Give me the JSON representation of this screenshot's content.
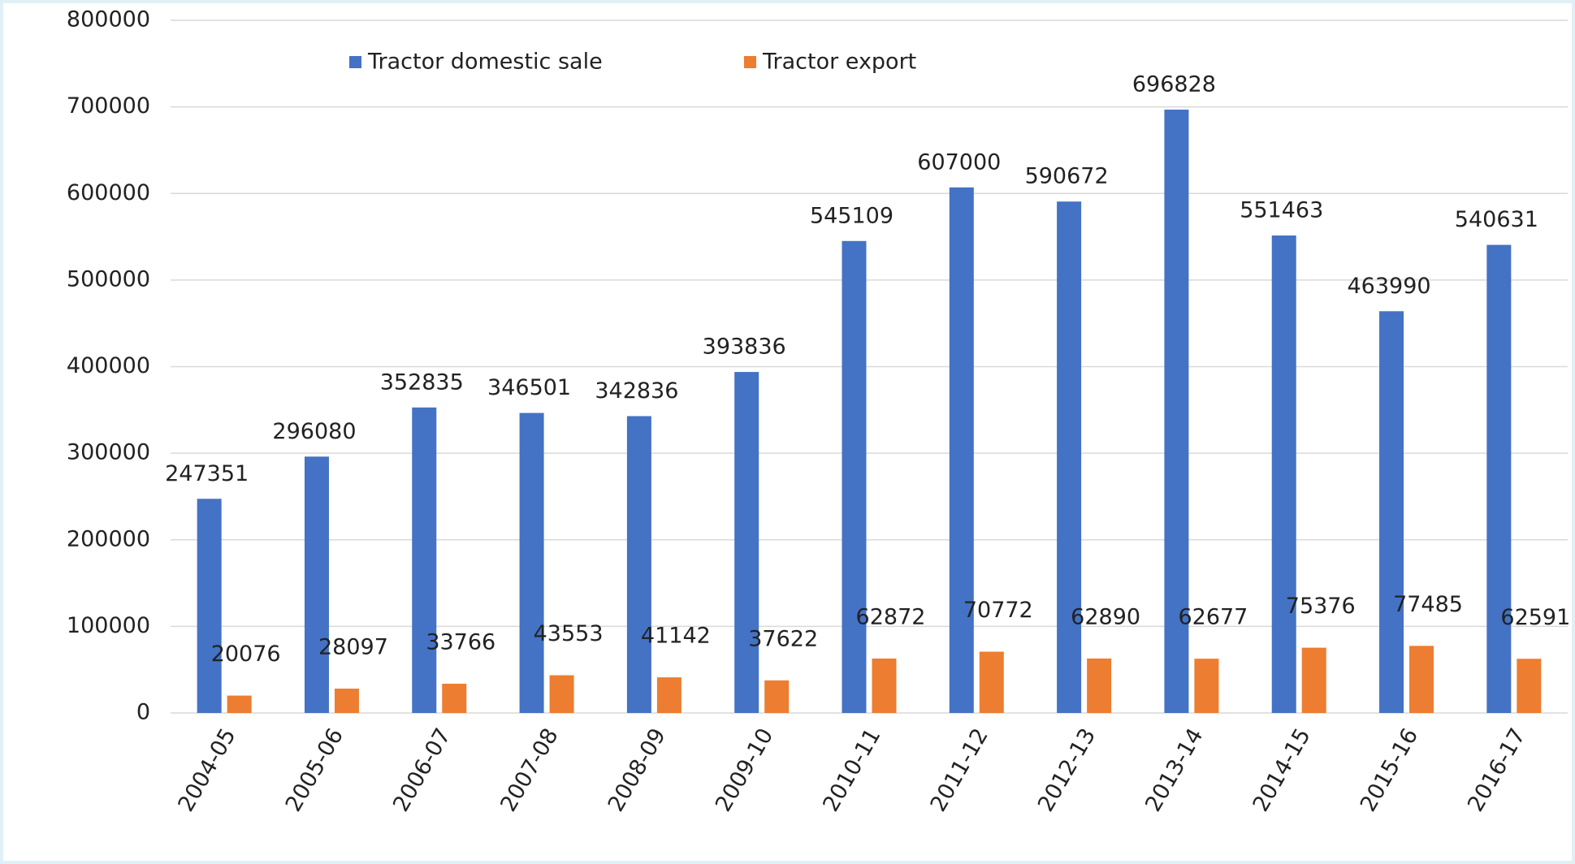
{
  "chart_data": {
    "type": "bar",
    "categories": [
      "2004-05",
      "2005-06",
      "2006-07",
      "2007-08",
      "2008-09",
      "2009-10",
      "2010-11",
      "2011-12",
      "2012-13",
      "2013-14",
      "2014-15",
      "2015-16",
      "2016-17"
    ],
    "series": [
      {
        "name": "Tractor domestic sale",
        "color": "#4472c4",
        "values": [
          247351,
          296080,
          352835,
          346501,
          342836,
          393836,
          545109,
          607000,
          590672,
          696828,
          551463,
          463990,
          540631
        ]
      },
      {
        "name": "Tractor export",
        "color": "#ed7d31",
        "values": [
          20076,
          28097,
          33766,
          43553,
          41142,
          37622,
          62872,
          70772,
          62890,
          62677,
          75376,
          77485,
          62591
        ]
      }
    ],
    "ylim": [
      0,
      800000
    ],
    "yticks": [
      0,
      100000,
      200000,
      300000,
      400000,
      500000,
      600000,
      700000,
      800000
    ],
    "grid": true,
    "legend": "top"
  }
}
